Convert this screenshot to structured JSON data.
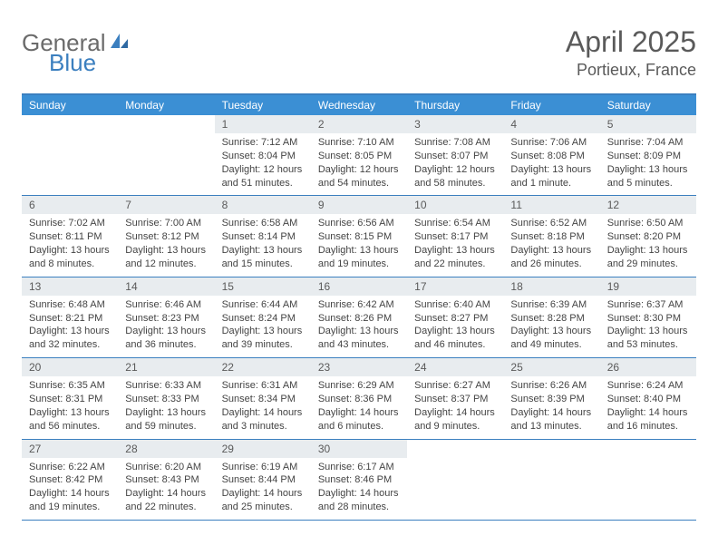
{
  "logo": {
    "text1": "General",
    "text2": "Blue"
  },
  "title": "April 2025",
  "location": "Portieux, France",
  "colors": {
    "header_bar": "#3b8fd4",
    "border": "#3b7fbf",
    "daynum_bg": "#e8ecef",
    "text_gray": "#5a5a5a",
    "body_text": "#444444",
    "logo_gray": "#6b6b6b",
    "logo_blue": "#3b7fbf"
  },
  "weekdays": [
    "Sunday",
    "Monday",
    "Tuesday",
    "Wednesday",
    "Thursday",
    "Friday",
    "Saturday"
  ],
  "weeks": [
    [
      {
        "empty": true
      },
      {
        "empty": true
      },
      {
        "num": "1",
        "sunrise": "Sunrise: 7:12 AM",
        "sunset": "Sunset: 8:04 PM",
        "daylight": "Daylight: 12 hours and 51 minutes."
      },
      {
        "num": "2",
        "sunrise": "Sunrise: 7:10 AM",
        "sunset": "Sunset: 8:05 PM",
        "daylight": "Daylight: 12 hours and 54 minutes."
      },
      {
        "num": "3",
        "sunrise": "Sunrise: 7:08 AM",
        "sunset": "Sunset: 8:07 PM",
        "daylight": "Daylight: 12 hours and 58 minutes."
      },
      {
        "num": "4",
        "sunrise": "Sunrise: 7:06 AM",
        "sunset": "Sunset: 8:08 PM",
        "daylight": "Daylight: 13 hours and 1 minute."
      },
      {
        "num": "5",
        "sunrise": "Sunrise: 7:04 AM",
        "sunset": "Sunset: 8:09 PM",
        "daylight": "Daylight: 13 hours and 5 minutes."
      }
    ],
    [
      {
        "num": "6",
        "sunrise": "Sunrise: 7:02 AM",
        "sunset": "Sunset: 8:11 PM",
        "daylight": "Daylight: 13 hours and 8 minutes."
      },
      {
        "num": "7",
        "sunrise": "Sunrise: 7:00 AM",
        "sunset": "Sunset: 8:12 PM",
        "daylight": "Daylight: 13 hours and 12 minutes."
      },
      {
        "num": "8",
        "sunrise": "Sunrise: 6:58 AM",
        "sunset": "Sunset: 8:14 PM",
        "daylight": "Daylight: 13 hours and 15 minutes."
      },
      {
        "num": "9",
        "sunrise": "Sunrise: 6:56 AM",
        "sunset": "Sunset: 8:15 PM",
        "daylight": "Daylight: 13 hours and 19 minutes."
      },
      {
        "num": "10",
        "sunrise": "Sunrise: 6:54 AM",
        "sunset": "Sunset: 8:17 PM",
        "daylight": "Daylight: 13 hours and 22 minutes."
      },
      {
        "num": "11",
        "sunrise": "Sunrise: 6:52 AM",
        "sunset": "Sunset: 8:18 PM",
        "daylight": "Daylight: 13 hours and 26 minutes."
      },
      {
        "num": "12",
        "sunrise": "Sunrise: 6:50 AM",
        "sunset": "Sunset: 8:20 PM",
        "daylight": "Daylight: 13 hours and 29 minutes."
      }
    ],
    [
      {
        "num": "13",
        "sunrise": "Sunrise: 6:48 AM",
        "sunset": "Sunset: 8:21 PM",
        "daylight": "Daylight: 13 hours and 32 minutes."
      },
      {
        "num": "14",
        "sunrise": "Sunrise: 6:46 AM",
        "sunset": "Sunset: 8:23 PM",
        "daylight": "Daylight: 13 hours and 36 minutes."
      },
      {
        "num": "15",
        "sunrise": "Sunrise: 6:44 AM",
        "sunset": "Sunset: 8:24 PM",
        "daylight": "Daylight: 13 hours and 39 minutes."
      },
      {
        "num": "16",
        "sunrise": "Sunrise: 6:42 AM",
        "sunset": "Sunset: 8:26 PM",
        "daylight": "Daylight: 13 hours and 43 minutes."
      },
      {
        "num": "17",
        "sunrise": "Sunrise: 6:40 AM",
        "sunset": "Sunset: 8:27 PM",
        "daylight": "Daylight: 13 hours and 46 minutes."
      },
      {
        "num": "18",
        "sunrise": "Sunrise: 6:39 AM",
        "sunset": "Sunset: 8:28 PM",
        "daylight": "Daylight: 13 hours and 49 minutes."
      },
      {
        "num": "19",
        "sunrise": "Sunrise: 6:37 AM",
        "sunset": "Sunset: 8:30 PM",
        "daylight": "Daylight: 13 hours and 53 minutes."
      }
    ],
    [
      {
        "num": "20",
        "sunrise": "Sunrise: 6:35 AM",
        "sunset": "Sunset: 8:31 PM",
        "daylight": "Daylight: 13 hours and 56 minutes."
      },
      {
        "num": "21",
        "sunrise": "Sunrise: 6:33 AM",
        "sunset": "Sunset: 8:33 PM",
        "daylight": "Daylight: 13 hours and 59 minutes."
      },
      {
        "num": "22",
        "sunrise": "Sunrise: 6:31 AM",
        "sunset": "Sunset: 8:34 PM",
        "daylight": "Daylight: 14 hours and 3 minutes."
      },
      {
        "num": "23",
        "sunrise": "Sunrise: 6:29 AM",
        "sunset": "Sunset: 8:36 PM",
        "daylight": "Daylight: 14 hours and 6 minutes."
      },
      {
        "num": "24",
        "sunrise": "Sunrise: 6:27 AM",
        "sunset": "Sunset: 8:37 PM",
        "daylight": "Daylight: 14 hours and 9 minutes."
      },
      {
        "num": "25",
        "sunrise": "Sunrise: 6:26 AM",
        "sunset": "Sunset: 8:39 PM",
        "daylight": "Daylight: 14 hours and 13 minutes."
      },
      {
        "num": "26",
        "sunrise": "Sunrise: 6:24 AM",
        "sunset": "Sunset: 8:40 PM",
        "daylight": "Daylight: 14 hours and 16 minutes."
      }
    ],
    [
      {
        "num": "27",
        "sunrise": "Sunrise: 6:22 AM",
        "sunset": "Sunset: 8:42 PM",
        "daylight": "Daylight: 14 hours and 19 minutes."
      },
      {
        "num": "28",
        "sunrise": "Sunrise: 6:20 AM",
        "sunset": "Sunset: 8:43 PM",
        "daylight": "Daylight: 14 hours and 22 minutes."
      },
      {
        "num": "29",
        "sunrise": "Sunrise: 6:19 AM",
        "sunset": "Sunset: 8:44 PM",
        "daylight": "Daylight: 14 hours and 25 minutes."
      },
      {
        "num": "30",
        "sunrise": "Sunrise: 6:17 AM",
        "sunset": "Sunset: 8:46 PM",
        "daylight": "Daylight: 14 hours and 28 minutes."
      },
      {
        "empty": true
      },
      {
        "empty": true
      },
      {
        "empty": true
      }
    ]
  ]
}
